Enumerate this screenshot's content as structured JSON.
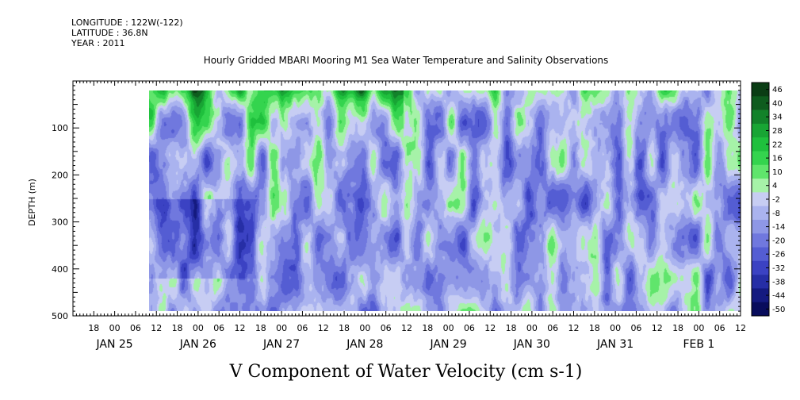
{
  "header": {
    "longitude": "LONGITUDE : 122W(-122)",
    "latitude": "LATITUDE : 36.8N",
    "year": "YEAR : 2011"
  },
  "chart_data": {
    "type": "heatmap",
    "title": "Hourly Gridded MBARI Mooring M1 Sea Water Temperature and Salinity Observations",
    "xlabel": "V Component of Water Velocity (cm s-1)",
    "ylabel": "DEPTH (m)",
    "y_ticks": [
      100,
      200,
      300,
      400,
      500
    ],
    "ylim": [
      500,
      0
    ],
    "data_depth_range": [
      20,
      490
    ],
    "x_range_hours": [
      0,
      192
    ],
    "data_time_range_hours": [
      22,
      192
    ],
    "hour_ticks": [
      "18",
      "00",
      "06",
      "12",
      "18",
      "00",
      "06",
      "12",
      "18",
      "00",
      "06",
      "12",
      "18",
      "00",
      "06",
      "12",
      "18",
      "00",
      "06",
      "12",
      "18",
      "00",
      "06",
      "12",
      "18",
      "00",
      "06",
      "12",
      "18",
      "00",
      "06",
      "12"
    ],
    "day_labels": [
      "JAN 25",
      "JAN 26",
      "JAN 27",
      "JAN 28",
      "JAN 29",
      "JAN 30",
      "JAN 31",
      "FEB  1"
    ],
    "colorbar": {
      "labels": [
        "46",
        "40",
        "34",
        "28",
        "22",
        "16",
        "10",
        "4",
        "-2",
        "-8",
        "-14",
        "-20",
        "-26",
        "-32",
        "-38",
        "-44",
        "-50"
      ],
      "range": [
        -50,
        50
      ],
      "colors": [
        "#0a3d14",
        "#0e5c1e",
        "#12822a",
        "#18a534",
        "#1fc03d",
        "#34d44e",
        "#60e56c",
        "#a6f2a8",
        "#c7cdf3",
        "#aab3ef",
        "#8e97e6",
        "#7078de",
        "#545dd3",
        "#3b42c3",
        "#262ea6",
        "#141a80",
        "#080c5c"
      ]
    }
  }
}
